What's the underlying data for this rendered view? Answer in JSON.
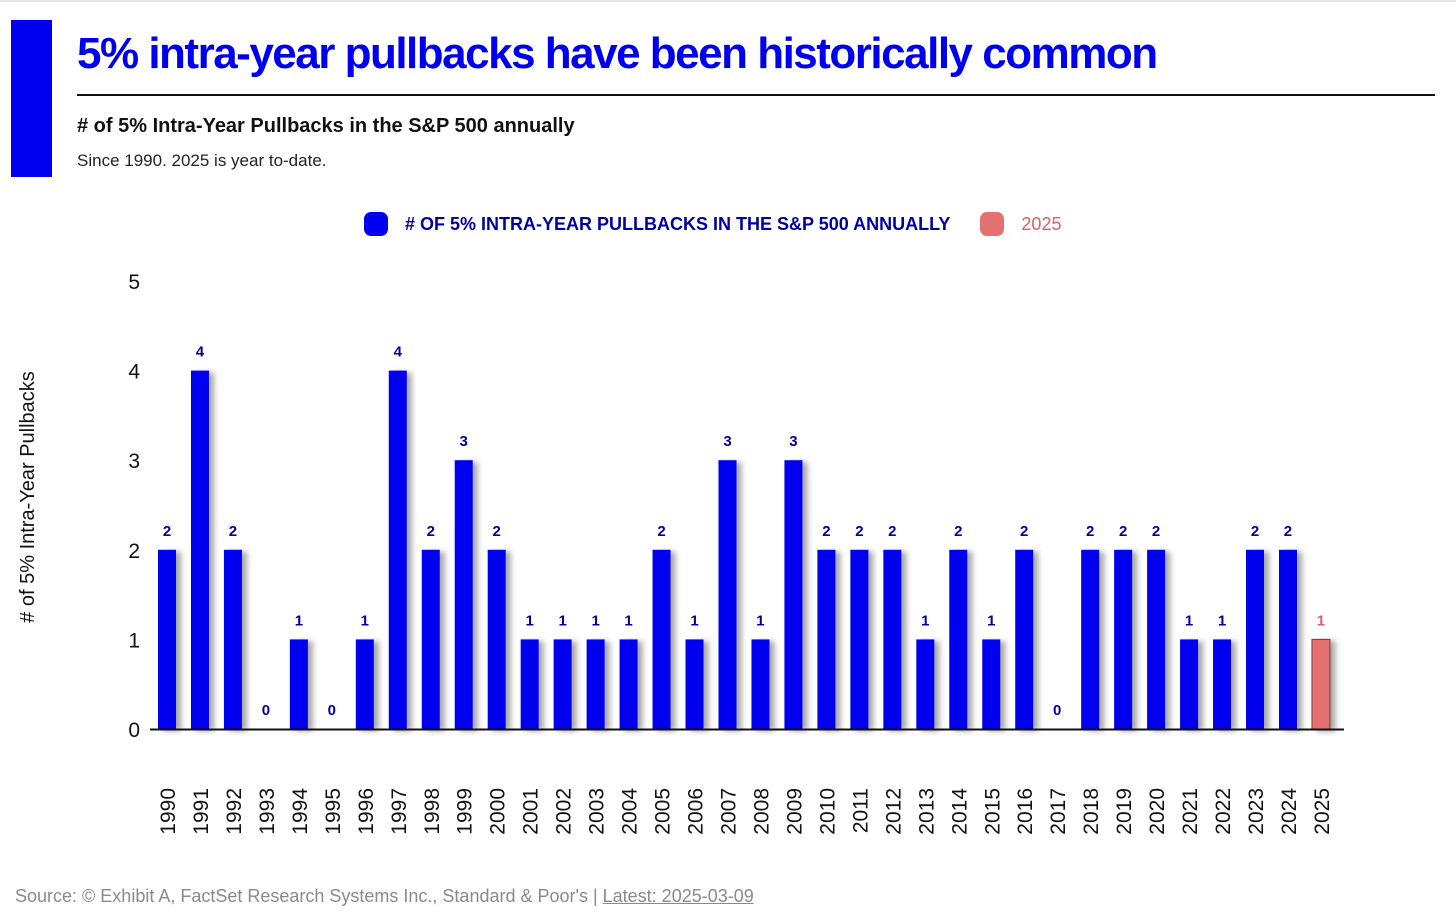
{
  "header": {
    "headline": "5% intra-year pullbacks have been historically common"
  },
  "chart_data": {
    "type": "bar",
    "title": "# of 5% Intra-Year Pullbacks in the S&P 500 annually",
    "subtitle": "Since 1990. 2025 is year to-date.",
    "ylabel": "# of 5% Intra-Year Pullbacks",
    "xlabel": "",
    "ylim": [
      0,
      5
    ],
    "yticks": [
      0,
      1,
      2,
      3,
      4,
      5
    ],
    "grid": false,
    "legend_position": "top-center",
    "categories": [
      "1990",
      "1991",
      "1992",
      "1993",
      "1994",
      "1995",
      "1996",
      "1997",
      "1998",
      "1999",
      "2000",
      "2001",
      "2002",
      "2003",
      "2004",
      "2005",
      "2006",
      "2007",
      "2008",
      "2009",
      "2010",
      "2011",
      "2012",
      "2013",
      "2014",
      "2015",
      "2016",
      "2017",
      "2018",
      "2019",
      "2020",
      "2021",
      "2022",
      "2023",
      "2024",
      "2025"
    ],
    "series": [
      {
        "name": "# OF 5% INTRA-YEAR PULLBACKS IN THE S&P 500 ANNUALLY",
        "color": "#0000ee",
        "label_color": "#00009e",
        "values": [
          2,
          4,
          2,
          0,
          1,
          0,
          1,
          4,
          2,
          3,
          2,
          1,
          1,
          1,
          1,
          2,
          1,
          3,
          1,
          3,
          2,
          2,
          2,
          1,
          2,
          1,
          2,
          0,
          2,
          2,
          2,
          1,
          1,
          2,
          2,
          null
        ]
      },
      {
        "name": "2025",
        "color": "#e47070",
        "label_color": "#d46363",
        "values": [
          null,
          null,
          null,
          null,
          null,
          null,
          null,
          null,
          null,
          null,
          null,
          null,
          null,
          null,
          null,
          null,
          null,
          null,
          null,
          null,
          null,
          null,
          null,
          null,
          null,
          null,
          null,
          null,
          null,
          null,
          null,
          null,
          null,
          null,
          null,
          1
        ]
      }
    ]
  },
  "footer": {
    "source": "Source: © Exhibit A, FactSet Research Systems Inc., Standard & Poor's | ",
    "latest": "Latest: 2025-03-09"
  }
}
